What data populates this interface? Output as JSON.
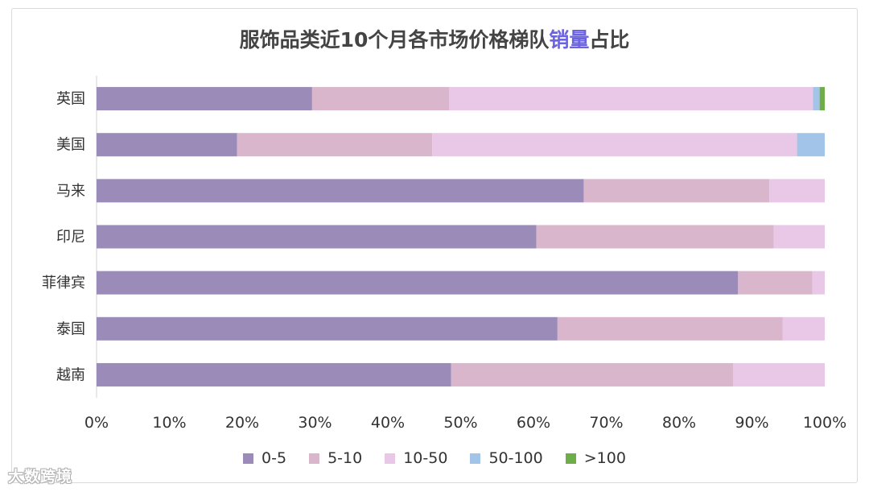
{
  "title_prefix": "服饰品类近10个月各市场价格梯队",
  "title_highlight": "销量",
  "title_suffix": "占比",
  "watermark": "大数跨境",
  "chart_data": {
    "type": "bar",
    "orientation": "horizontal",
    "stacked": "percent",
    "title": "服饰品类近10个月各市场价格梯队销量占比",
    "categories": [
      "英国",
      "美国",
      "马来",
      "印尼",
      "菲律宾",
      "泰国",
      "越南"
    ],
    "series": [
      {
        "name": "0-5",
        "color": "#9a8bb8",
        "values": [
          29.6,
          19.3,
          66.9,
          60.4,
          88.1,
          63.3,
          48.7
        ]
      },
      {
        "name": "5-10",
        "color": "#d9b6cb",
        "values": [
          18.8,
          26.8,
          25.5,
          32.6,
          10.2,
          30.9,
          38.7
        ]
      },
      {
        "name": "10-50",
        "color": "#e8c8e6",
        "values": [
          50.0,
          50.1,
          7.6,
          7.0,
          1.7,
          5.8,
          12.6
        ]
      },
      {
        "name": "50-100",
        "color": "#a2c4e8",
        "values": [
          0.9,
          3.8,
          0,
          0,
          0,
          0,
          0
        ]
      },
      {
        "name": ">100",
        "color": "#6fad48",
        "values": [
          0.7,
          0,
          0,
          0,
          0,
          0,
          0
        ]
      }
    ],
    "x_ticks": [
      "0%",
      "10%",
      "20%",
      "30%",
      "40%",
      "50%",
      "60%",
      "70%",
      "80%",
      "90%",
      "100%"
    ],
    "xlim": [
      0,
      100
    ],
    "legend_position": "bottom",
    "grid": false
  }
}
